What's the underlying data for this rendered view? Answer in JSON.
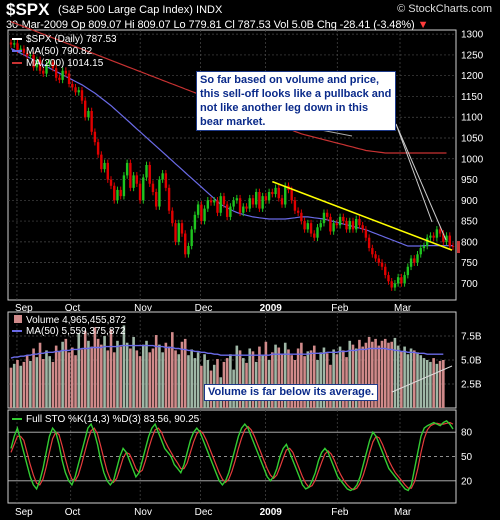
{
  "header": {
    "title": "$SPX",
    "subtitle": "(S&P 500 Large Cap Index)",
    "exchange": "INDX",
    "logo": "© StockCharts.com",
    "date": "30-Mar-2009",
    "open": "Op 809.07",
    "high": "Hi 809.07",
    "low": "Lo 779.81",
    "close": "Cl 787.53",
    "volume": "Vol 5.0B",
    "change": "Chg -28.41 (-3.48%)",
    "change_arrow": "▼"
  },
  "colors": {
    "background": "#000000",
    "panel_border": "#cfcfcf",
    "grid": "#4a4a4a",
    "ma50": "#6a6ae6",
    "ma200": "#c83232",
    "trendline": "#ffff00",
    "candle_down": "#e00000",
    "candle_up": "#1fc41f",
    "volume_bar": "#d08a8a",
    "volume_bar_up": "#9fb7a6",
    "sto_k": "#33cc33",
    "sto_d": "#e63c3c",
    "annotation_bg": "#ffffff",
    "annotation_border": "#1e3a8a"
  },
  "price_panel": {
    "legend": [
      "$SPX (Daily) 787.53",
      "MA(50) 790.82",
      "MA(200) 1014.15"
    ],
    "y_ticks": [
      "1300",
      "1250",
      "1200",
      "1150",
      "1100",
      "1050",
      "1000",
      "950",
      "900",
      "850",
      "800",
      "750",
      "700"
    ],
    "annotation": "So far based on volume and price, this sell-off looks like a pullback and not like another leg down in this bear market."
  },
  "volume_panel": {
    "legend": [
      "Volume 4,965,455,872",
      "MA(50) 5,559,375,872"
    ],
    "y_ticks": [
      "7.5B",
      "5.0B",
      "2.5B"
    ],
    "annotation": "Volume is far below its average."
  },
  "sto_panel": {
    "legend": "Full STO %K(14,3) %D(3) 83.56, 90.25",
    "y_ticks": [
      "80",
      "50",
      "20"
    ]
  },
  "x_axis": {
    "labels": [
      "Sep",
      "Oct",
      "Nov",
      "Dec",
      "2009",
      "Feb",
      "Mar"
    ]
  },
  "chart_data": [
    {
      "type": "candlestick",
      "title": "$SPX (Daily) 787.53",
      "ylim": [
        660,
        1310
      ],
      "x_labels": [
        "Sep",
        "Oct",
        "Nov",
        "Dec",
        "2009",
        "Feb",
        "Mar"
      ],
      "series": [
        {
          "name": "$SPX",
          "close": [
            1275,
            1278,
            1262,
            1265,
            1255,
            1248,
            1250,
            1220,
            1238,
            1212,
            1205,
            1228,
            1232,
            1218,
            1195,
            1190,
            1212,
            1205,
            1180,
            1172,
            1160,
            1165,
            1140,
            1100,
            1115,
            1065,
            1040,
            1010,
            975,
            990,
            950,
            935,
            900,
            925,
            910,
            960,
            990,
            930,
            960,
            940,
            900,
            955,
            985,
            940,
            920,
            885,
            950,
            965,
            930,
            875,
            845,
            800,
            845,
            820,
            770,
            790,
            830,
            865,
            890,
            850,
            880,
            900,
            895,
            900,
            870,
            910,
            890,
            860,
            885,
            900,
            905,
            870,
            885,
            880,
            905,
            890,
            920,
            880,
            910,
            900,
            920,
            915,
            930,
            905,
            890,
            935,
            925,
            900,
            875,
            870,
            850,
            830,
            845,
            820,
            810,
            835,
            845,
            870,
            860,
            825,
            845,
            840,
            860,
            850,
            830,
            850,
            830,
            855,
            840,
            830,
            810,
            785,
            770,
            760,
            750,
            740,
            720,
            705,
            690,
            700,
            715,
            700,
            720,
            740,
            760,
            750,
            770,
            785,
            790,
            810,
            815,
            810,
            830,
            820,
            800,
            815,
            790,
            788
          ],
          "ma50": [
            1265,
            1262,
            1258,
            1254,
            1250,
            1246,
            1242,
            1238,
            1234,
            1230,
            1226,
            1222,
            1218,
            1214,
            1210,
            1206,
            1202,
            1198,
            1194,
            1190,
            1186,
            1182,
            1178,
            1173,
            1168,
            1163,
            1158,
            1152,
            1146,
            1140,
            1134,
            1128,
            1121,
            1114,
            1107,
            1100,
            1093,
            1086,
            1079,
            1072,
            1065,
            1058,
            1051,
            1044,
            1037,
            1030,
            1023,
            1016,
            1009,
            1002,
            995,
            988,
            981,
            974,
            967,
            960,
            953,
            946,
            939,
            932,
            925,
            918,
            911,
            904,
            897,
            890,
            886,
            882,
            878,
            874,
            871,
            868,
            866,
            864,
            862,
            860,
            859,
            858,
            857,
            856,
            855,
            855,
            855,
            855,
            855,
            855,
            856,
            857,
            858,
            859,
            860,
            860,
            860,
            859,
            858,
            857,
            856,
            855,
            853,
            851,
            849,
            847,
            845,
            843,
            841,
            839,
            837,
            835,
            833,
            831,
            829,
            826,
            823,
            820,
            817,
            814,
            811,
            808,
            805,
            802,
            799,
            796,
            793,
            790,
            790,
            790,
            790,
            790,
            791,
            791,
            791,
            791,
            791,
            791,
            791,
            791,
            791,
            791
          ],
          "ma200": [
            1330,
            1327,
            1324,
            1321,
            1318,
            1315,
            1312,
            1309,
            1306,
            1303,
            1300,
            1297,
            1294,
            1291,
            1288,
            1285,
            1282,
            1279,
            1276,
            1273,
            1270,
            1267,
            1264,
            1261,
            1258,
            1255,
            1252,
            1249,
            1246,
            1243,
            1240,
            1237,
            1234,
            1231,
            1228,
            1225,
            1222,
            1219,
            1216,
            1213,
            1210,
            1207,
            1204,
            1201,
            1198,
            1195,
            1192,
            1189,
            1186,
            1183,
            1180,
            1177,
            1174,
            1171,
            1168,
            1165,
            1162,
            1159,
            1156,
            1153,
            1150,
            1147,
            1144,
            1141,
            1138,
            1135,
            1132,
            1129,
            1126,
            1123,
            1120,
            1117,
            1114,
            1111,
            1108,
            1105,
            1102,
            1099,
            1096,
            1093,
            1090,
            1087,
            1084,
            1081,
            1078,
            1075,
            1072,
            1069,
            1066,
            1063,
            1060,
            1058,
            1056,
            1054,
            1052,
            1050,
            1048,
            1046,
            1044,
            1042,
            1040,
            1038,
            1036,
            1034,
            1032,
            1030,
            1028,
            1026,
            1024,
            1022,
            1020,
            1019,
            1018,
            1017,
            1016,
            1015,
            1014,
            1014,
            1014,
            1014,
            1014,
            1014,
            1014,
            1014,
            1014,
            1014,
            1014,
            1014,
            1014,
            1014,
            1014,
            1014,
            1014,
            1014,
            1014,
            1014
          ]
        }
      ]
    },
    {
      "type": "bar",
      "title": "Volume 4,965,455,872",
      "ylim": [
        0,
        10
      ],
      "unit": "B",
      "series": [
        {
          "name": "Volume",
          "values": [
            4.2,
            4.6,
            5.0,
            4.4,
            4.8,
            5.5,
            4.9,
            6.2,
            5.3,
            6.8,
            5.1,
            6.0,
            5.4,
            4.8,
            6.5,
            5.9,
            6.9,
            7.2,
            5.8,
            6.3,
            5.5,
            7.8,
            6.1,
            8.0,
            7.0,
            6.4,
            8.4,
            7.2,
            6.6,
            7.5,
            6.0,
            8.2,
            5.8,
            7.0,
            6.4,
            8.6,
            6.8,
            6.2,
            7.4,
            6.0,
            5.4,
            6.6,
            7.0,
            5.8,
            6.2,
            7.6,
            6.6,
            5.8,
            6.8,
            6.4,
            7.9,
            6.0,
            5.6,
            6.9,
            7.2,
            5.5,
            6.1,
            5.2,
            5.8,
            4.4,
            5.6,
            5.0,
            3.9,
            4.5,
            5.1,
            3.2,
            4.8,
            5.2,
            5.6,
            4.0,
            6.5,
            6.0,
            5.2,
            4.7,
            6.2,
            5.9,
            4.8,
            6.4,
            5.5,
            6.9,
            5.0,
            5.8,
            6.6,
            6.3,
            5.6,
            6.8,
            6.1,
            5.5,
            5.0,
            6.2,
            6.8,
            5.4,
            5.9,
            6.0,
            6.5,
            5.0,
            5.8,
            6.3,
            5.7,
            4.5,
            6.1,
            5.6,
            6.4,
            6.0,
            5.3,
            7.0,
            6.6,
            6.2,
            7.1,
            6.4,
            6.8,
            7.4,
            6.9,
            7.2,
            6.5,
            7.0,
            7.2,
            6.8,
            6.9,
            7.3,
            6.5,
            5.9,
            6.4,
            5.6,
            6.2,
            6.0,
            5.8,
            5.5,
            5.2,
            5.0,
            4.8,
            5.2,
            4.6,
            4.9,
            5.0
          ],
          "ma50": [
            5.2,
            5.3,
            5.3,
            5.4,
            5.4,
            5.5,
            5.5,
            5.6,
            5.6,
            5.7,
            5.7,
            5.8,
            5.8,
            5.8,
            5.9,
            5.9,
            6.0,
            6.0,
            6.0,
            6.1,
            6.1,
            6.1,
            6.2,
            6.2,
            6.2,
            6.3,
            6.3,
            6.3,
            6.3,
            6.4,
            6.4,
            6.4,
            6.4,
            6.4,
            6.5,
            6.5,
            6.5,
            6.5,
            6.5,
            6.5,
            6.5,
            6.5,
            6.5,
            6.5,
            6.5,
            6.4,
            6.4,
            6.4,
            6.3,
            6.3,
            6.3,
            6.2,
            6.2,
            6.1,
            6.1,
            6.0,
            6.0,
            5.9,
            5.9,
            5.8,
            5.8,
            5.7,
            5.7,
            5.6,
            5.6,
            5.5,
            5.5,
            5.5,
            5.5,
            5.5,
            5.5,
            5.5,
            5.5,
            5.5,
            5.5,
            5.5,
            5.5,
            5.5,
            5.5,
            5.5,
            5.5,
            5.6,
            5.6,
            5.6,
            5.6,
            5.6,
            5.6,
            5.6,
            5.6,
            5.6,
            5.6,
            5.6,
            5.6,
            5.7,
            5.7,
            5.7,
            5.7,
            5.7,
            5.8,
            5.8,
            5.8,
            5.8,
            5.9,
            5.9,
            5.9,
            6.0,
            6.0,
            6.0,
            6.1,
            6.1,
            6.1,
            6.2,
            6.2,
            6.2,
            6.2,
            6.2,
            6.2,
            6.1,
            6.1,
            6.0,
            6.0,
            5.9,
            5.9,
            5.8,
            5.8,
            5.8,
            5.7,
            5.7,
            5.7,
            5.6,
            5.6,
            5.6,
            5.6,
            5.6,
            5.6
          ]
        }
      ]
    },
    {
      "type": "line",
      "title": "Full STO %K(14,3) %D(3) 83.56, 90.25",
      "ylim": [
        0,
        100
      ],
      "series": [
        {
          "name": "%K",
          "values": [
            60,
            75,
            85,
            70,
            55,
            40,
            25,
            15,
            10,
            20,
            35,
            55,
            75,
            85,
            80,
            65,
            45,
            30,
            20,
            15,
            25,
            40,
            55,
            70,
            85,
            90,
            80,
            65,
            45,
            30,
            20,
            15,
            20,
            35,
            50,
            60,
            55,
            45,
            35,
            25,
            30,
            45,
            60,
            75,
            85,
            90,
            80,
            70,
            60,
            55,
            50,
            40,
            35,
            30,
            40,
            55,
            70,
            80,
            85,
            80,
            70,
            60,
            50,
            40,
            30,
            20,
            15,
            20,
            30,
            45,
            60,
            75,
            85,
            90,
            85,
            75,
            65,
            55,
            45,
            35,
            25,
            20,
            25,
            35,
            50,
            60,
            65,
            55,
            45,
            35,
            25,
            15,
            10,
            12,
            20,
            30,
            45,
            55,
            60,
            55,
            45,
            35,
            25,
            20,
            15,
            10,
            8,
            10,
            15,
            25,
            40,
            55,
            70,
            80,
            75,
            65,
            55,
            45,
            35,
            30,
            25,
            20,
            15,
            10,
            8,
            15,
            35,
            55,
            75,
            85,
            88,
            90,
            92,
            90,
            88,
            92,
            94,
            90,
            84
          ],
          "description": ""
        },
        {
          "name": "%D",
          "values": [
            55,
            65,
            75,
            75,
            70,
            55,
            40,
            27,
            17,
            15,
            22,
            37,
            55,
            72,
            80,
            77,
            63,
            47,
            32,
            22,
            20,
            27,
            40,
            55,
            70,
            82,
            85,
            78,
            63,
            47,
            32,
            22,
            18,
            23,
            35,
            48,
            55,
            53,
            45,
            35,
            30,
            33,
            45,
            60,
            73,
            83,
            85,
            80,
            70,
            62,
            55,
            48,
            42,
            35,
            35,
            42,
            55,
            68,
            78,
            82,
            78,
            70,
            60,
            50,
            40,
            30,
            22,
            18,
            22,
            32,
            45,
            60,
            73,
            83,
            87,
            83,
            75,
            65,
            55,
            45,
            35,
            27,
            23,
            27,
            37,
            48,
            58,
            60,
            55,
            45,
            35,
            25,
            17,
            12,
            14,
            21,
            32,
            43,
            53,
            57,
            53,
            45,
            35,
            27,
            20,
            15,
            11,
            9,
            11,
            17,
            27,
            40,
            55,
            68,
            75,
            73,
            65,
            55,
            45,
            37,
            30,
            25,
            20,
            15,
            11,
            11,
            19,
            35,
            55,
            72,
            83,
            88,
            90,
            91,
            90,
            90,
            91,
            92,
            90
          ],
          "description": ""
        }
      ]
    }
  ]
}
